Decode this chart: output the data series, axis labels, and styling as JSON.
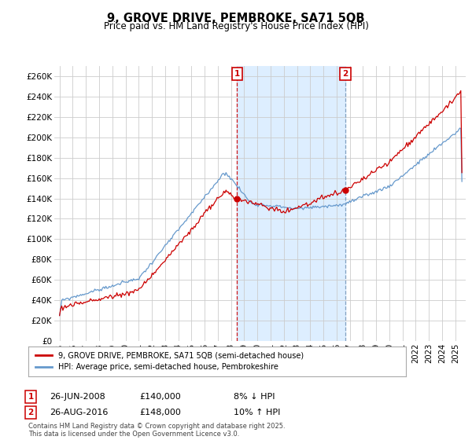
{
  "title": "9, GROVE DRIVE, PEMBROKE, SA71 5QB",
  "subtitle": "Price paid vs. HM Land Registry's House Price Index (HPI)",
  "ylabel_ticks": [
    "£0",
    "£20K",
    "£40K",
    "£60K",
    "£80K",
    "£100K",
    "£120K",
    "£140K",
    "£160K",
    "£180K",
    "£200K",
    "£220K",
    "£240K",
    "£260K"
  ],
  "ytick_values": [
    0,
    20000,
    40000,
    60000,
    80000,
    100000,
    120000,
    140000,
    160000,
    180000,
    200000,
    220000,
    240000,
    260000
  ],
  "ylim": [
    0,
    270000
  ],
  "sale1_date": "26-JUN-2008",
  "sale1_price": 140000,
  "sale1_label": "8% ↓ HPI",
  "sale1_t": 2008.46,
  "sale2_date": "26-AUG-2016",
  "sale2_price": 148000,
  "sale2_label": "10% ↑ HPI",
  "sale2_t": 2016.65,
  "legend_line1": "9, GROVE DRIVE, PEMBROKE, SA71 5QB (semi-detached house)",
  "legend_line2": "HPI: Average price, semi-detached house, Pembrokeshire",
  "footer": "Contains HM Land Registry data © Crown copyright and database right 2025.\nThis data is licensed under the Open Government Licence v3.0.",
  "line_color_red": "#cc0000",
  "line_color_blue": "#6699cc",
  "shade_color": "#ddeeff",
  "background_color": "#ffffff",
  "grid_color": "#cccccc",
  "annotation_box_color": "#cc0000",
  "xlim_start": 1994.6,
  "xlim_end": 2025.8
}
